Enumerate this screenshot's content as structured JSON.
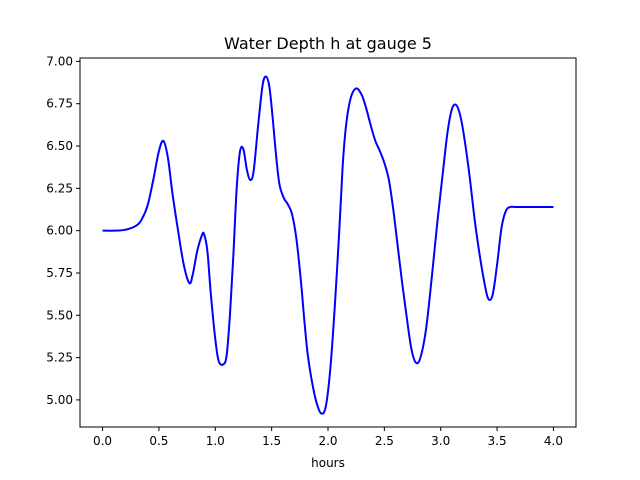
{
  "chart_data": {
    "type": "line",
    "title": "Water Depth h at gauge 5",
    "xlabel": "hours",
    "ylabel": "",
    "xlim": [
      -0.2,
      4.2
    ],
    "ylim": [
      4.84,
      7.02
    ],
    "xticks": [
      0.0,
      0.5,
      1.0,
      1.5,
      2.0,
      2.5,
      3.0,
      3.5,
      4.0
    ],
    "xtick_labels": [
      "0.0",
      "0.5",
      "1.0",
      "1.5",
      "2.0",
      "2.5",
      "3.0",
      "3.5",
      "4.0"
    ],
    "yticks": [
      5.0,
      5.25,
      5.5,
      5.75,
      6.0,
      6.25,
      6.5,
      6.75,
      7.0
    ],
    "ytick_labels": [
      "5.00",
      "5.25",
      "5.50",
      "5.75",
      "6.00",
      "6.25",
      "6.50",
      "6.75",
      "7.00"
    ],
    "grid": false,
    "line_color": "#0000ff",
    "series": [
      {
        "x": [
          0.0,
          0.1,
          0.2,
          0.3,
          0.35,
          0.4,
          0.45,
          0.5,
          0.54,
          0.58,
          0.62,
          0.67,
          0.72,
          0.77,
          0.8,
          0.84,
          0.88,
          0.9,
          0.93,
          0.96,
          1.0,
          1.03,
          1.07,
          1.1,
          1.13,
          1.16,
          1.19,
          1.22,
          1.25,
          1.28,
          1.31,
          1.34,
          1.38,
          1.42,
          1.45,
          1.48,
          1.51,
          1.54,
          1.57,
          1.61,
          1.64,
          1.68,
          1.72,
          1.76,
          1.79,
          1.82,
          1.86,
          1.9,
          1.94,
          1.98,
          2.02,
          2.06,
          2.1,
          2.13,
          2.16,
          2.2,
          2.25,
          2.3,
          2.34,
          2.38,
          2.42,
          2.46,
          2.5,
          2.54,
          2.58,
          2.62,
          2.66,
          2.7,
          2.74,
          2.78,
          2.82,
          2.87,
          2.92,
          2.97,
          3.02,
          3.06,
          3.1,
          3.14,
          3.18,
          3.22,
          3.26,
          3.3,
          3.34,
          3.38,
          3.42,
          3.46,
          3.5,
          3.54,
          3.58,
          3.62,
          3.66,
          3.7,
          3.74,
          3.78,
          3.82,
          3.86,
          3.9,
          3.94,
          3.98,
          4.0
        ],
        "y": [
          6.0,
          6.0,
          6.005,
          6.03,
          6.07,
          6.15,
          6.3,
          6.47,
          6.53,
          6.43,
          6.22,
          6.0,
          5.8,
          5.69,
          5.74,
          5.88,
          5.97,
          5.98,
          5.88,
          5.63,
          5.36,
          5.23,
          5.21,
          5.26,
          5.5,
          5.85,
          6.25,
          6.47,
          6.48,
          6.36,
          6.3,
          6.35,
          6.62,
          6.86,
          6.91,
          6.85,
          6.66,
          6.44,
          6.27,
          6.19,
          6.16,
          6.1,
          5.95,
          5.7,
          5.47,
          5.27,
          5.1,
          4.98,
          4.92,
          4.96,
          5.18,
          5.55,
          6.0,
          6.38,
          6.62,
          6.78,
          6.84,
          6.8,
          6.72,
          6.62,
          6.53,
          6.47,
          6.4,
          6.3,
          6.12,
          5.9,
          5.68,
          5.48,
          5.3,
          5.22,
          5.25,
          5.42,
          5.72,
          6.05,
          6.35,
          6.58,
          6.72,
          6.74,
          6.66,
          6.5,
          6.3,
          6.07,
          5.88,
          5.72,
          5.6,
          5.62,
          5.8,
          6.02,
          6.12,
          6.14,
          6.14,
          6.14,
          6.14,
          6.14,
          6.14,
          6.14,
          6.14,
          6.14,
          6.14,
          6.14
        ]
      }
    ]
  }
}
